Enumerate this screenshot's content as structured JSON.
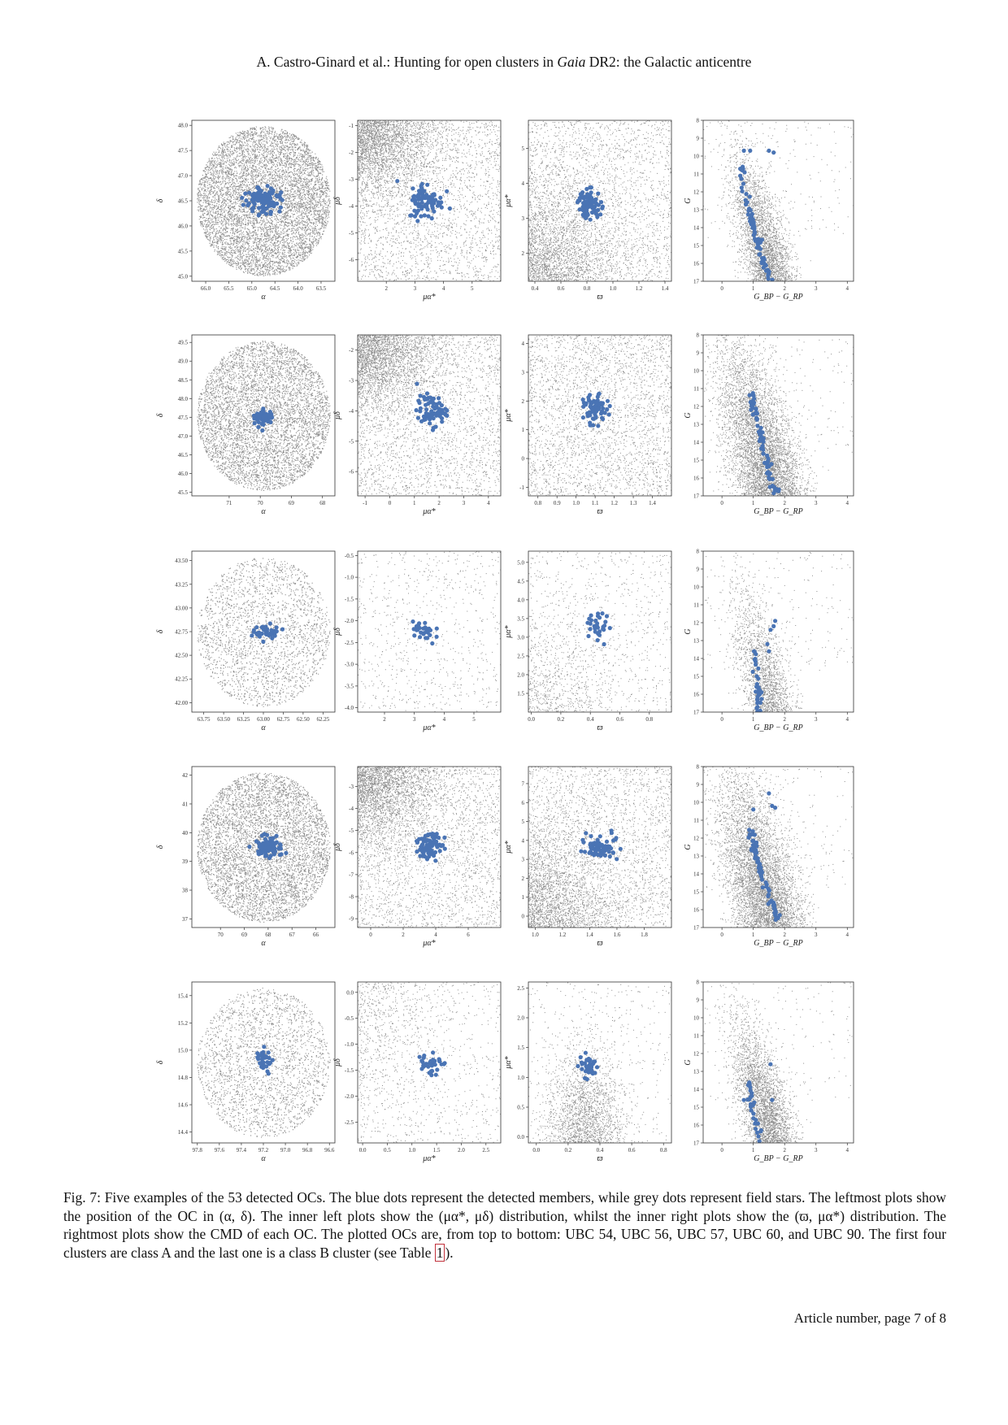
{
  "header": {
    "prefix": "A. Castro-Ginard et al.: Hunting for open clusters in ",
    "italic": "Gaia",
    "suffix": " DR2: the Galactic anticentre"
  },
  "colors": {
    "member": "#4a74b4",
    "field": "#7a7a7a",
    "frame": "#333333"
  },
  "chart_data": [
    {
      "type": "scatter",
      "cluster": "UBC 54",
      "panel": "position",
      "xlabel": "α",
      "ylabel": "δ",
      "xlim": [
        66.3,
        63.2
      ],
      "ylim": [
        44.9,
        48.1
      ],
      "xticks": [
        "66.0",
        "65.5",
        "65.0",
        "64.5",
        "64.0",
        "63.5"
      ],
      "xtick_values": [
        66.0,
        65.5,
        65.0,
        64.5,
        64.0,
        63.5
      ],
      "yticks": [
        "45.0",
        "45.5",
        "46.0",
        "46.5",
        "47.0",
        "47.5",
        "48.0"
      ],
      "ytick_values": [
        45.0,
        45.5,
        46.0,
        46.5,
        47.0,
        47.5,
        48.0
      ],
      "field_style": "dense-disk",
      "member_center": [
        64.75,
        46.5
      ],
      "member_spread": [
        0.18,
        0.12
      ],
      "member_count": 120
    },
    {
      "type": "scatter",
      "cluster": "UBC 54",
      "panel": "proper-motion",
      "xlabel": "μα*",
      "ylabel": "μδ",
      "xlim": [
        1,
        6
      ],
      "ylim": [
        -6.8,
        -0.8
      ],
      "xticks": [
        "2",
        "3",
        "4",
        "5"
      ],
      "xtick_values": [
        2,
        3,
        4,
        5
      ],
      "yticks": [
        "-1",
        "-2",
        "-3",
        "-4",
        "-5",
        "-6"
      ],
      "ytick_values": [
        -1,
        -2,
        -3,
        -4,
        -5,
        -6
      ],
      "field_style": "corner-top-left",
      "member_center": [
        3.4,
        -3.8
      ],
      "member_spread": [
        0.3,
        0.35
      ],
      "member_count": 80
    },
    {
      "type": "scatter",
      "cluster": "UBC 54",
      "panel": "parallax-pm",
      "xlabel": "ϖ",
      "ylabel": "μα*",
      "xlim": [
        0.35,
        1.45
      ],
      "ylim": [
        1.2,
        5.8
      ],
      "xticks": [
        "0.4",
        "0.6",
        "0.8",
        "1.0",
        "1.2",
        "1.4"
      ],
      "xtick_values": [
        0.4,
        0.6,
        0.8,
        1.0,
        1.2,
        1.4
      ],
      "yticks": [
        "2",
        "3",
        "4",
        "5"
      ],
      "ytick_values": [
        2,
        3,
        4,
        5
      ],
      "field_style": "corner-bottom-left",
      "member_center": [
        0.82,
        3.4
      ],
      "member_spread": [
        0.045,
        0.2
      ],
      "member_count": 80
    },
    {
      "type": "scatter",
      "cluster": "UBC 54",
      "panel": "CMD",
      "xlabel": "G_BP − G_RP",
      "ylabel": "G",
      "xlim": [
        -0.6,
        4.2
      ],
      "ylim": [
        17,
        8
      ],
      "xticks": [
        "0",
        "1",
        "2",
        "3",
        "4"
      ],
      "xtick_values": [
        0,
        1,
        2,
        3,
        4
      ],
      "yticks": [
        "8",
        "9",
        "10",
        "11",
        "12",
        "13",
        "14",
        "15",
        "16",
        "17"
      ],
      "ytick_values": [
        8,
        9,
        10,
        11,
        12,
        13,
        14,
        15,
        16,
        17
      ],
      "field_style": "cmd-band",
      "cmd_turnoff": [
        0.6,
        10.5
      ],
      "cmd_bottom": [
        1.55,
        17
      ],
      "member_count": 70,
      "members_extra": [
        [
          0.7,
          9.7
        ],
        [
          0.9,
          9.7
        ],
        [
          1.5,
          9.7
        ],
        [
          1.65,
          9.8
        ]
      ]
    },
    {
      "type": "scatter",
      "cluster": "UBC 56",
      "panel": "position",
      "xlabel": "α",
      "ylabel": "δ",
      "xlim": [
        72.2,
        67.6
      ],
      "ylim": [
        45.4,
        49.7
      ],
      "xticks": [
        "71",
        "70",
        "69",
        "68"
      ],
      "xtick_values": [
        71,
        70,
        69,
        68
      ],
      "yticks": [
        "45.5",
        "46.0",
        "46.5",
        "47.0",
        "47.5",
        "48.0",
        "48.5",
        "49.0",
        "49.5"
      ],
      "ytick_values": [
        45.5,
        46.0,
        46.5,
        47.0,
        47.5,
        48.0,
        48.5,
        49.0,
        49.5
      ],
      "field_style": "dense-disk",
      "member_center": [
        69.9,
        47.5
      ],
      "member_spread": [
        0.15,
        0.12
      ],
      "member_count": 60
    },
    {
      "type": "scatter",
      "cluster": "UBC 56",
      "panel": "proper-motion",
      "xlabel": "μα*",
      "ylabel": "μδ",
      "xlim": [
        -1.3,
        4.5
      ],
      "ylim": [
        -6.8,
        -1.5
      ],
      "xticks": [
        "-1",
        "0",
        "1",
        "2",
        "3",
        "4"
      ],
      "xtick_values": [
        -1,
        0,
        1,
        2,
        3,
        4
      ],
      "yticks": [
        "-2",
        "-3",
        "-4",
        "-5",
        "-6"
      ],
      "ytick_values": [
        -2,
        -3,
        -4,
        -5,
        -6
      ],
      "field_style": "corner-top-left",
      "member_center": [
        1.7,
        -4.0
      ],
      "member_spread": [
        0.3,
        0.25
      ],
      "member_count": 70
    },
    {
      "type": "scatter",
      "cluster": "UBC 56",
      "panel": "parallax-pm",
      "xlabel": "ϖ",
      "ylabel": "μα*",
      "xlim": [
        0.75,
        1.5
      ],
      "ylim": [
        -1.3,
        4.3
      ],
      "xticks": [
        "0.8",
        "0.9",
        "1.0",
        "1.1",
        "1.2",
        "1.3",
        "1.4"
      ],
      "xtick_values": [
        0.8,
        0.9,
        1.0,
        1.1,
        1.2,
        1.3,
        1.4
      ],
      "yticks": [
        "-1",
        "0",
        "1",
        "2",
        "3",
        "4"
      ],
      "ytick_values": [
        -1,
        0,
        1,
        2,
        3,
        4
      ],
      "field_style": "uniform",
      "member_center": [
        1.1,
        1.7
      ],
      "member_spread": [
        0.03,
        0.25
      ],
      "member_count": 70
    },
    {
      "type": "scatter",
      "cluster": "UBC 56",
      "panel": "CMD",
      "xlabel": "G_BP − G_RP",
      "ylabel": "G",
      "xlim": [
        -0.6,
        4.2
      ],
      "ylim": [
        17,
        8
      ],
      "xticks": [
        "0",
        "1",
        "2",
        "3",
        "4"
      ],
      "xtick_values": [
        0,
        1,
        2,
        3,
        4
      ],
      "yticks": [
        "8",
        "9",
        "10",
        "11",
        "12",
        "13",
        "14",
        "15",
        "16",
        "17"
      ],
      "ytick_values": [
        8,
        9,
        10,
        11,
        12,
        13,
        14,
        15,
        16,
        17
      ],
      "field_style": "cmd-band-heavy",
      "cmd_turnoff": [
        0.95,
        11.2
      ],
      "cmd_bottom": [
        1.75,
        16.9
      ],
      "member_count": 70,
      "members_extra": []
    },
    {
      "type": "scatter",
      "cluster": "UBC 57",
      "panel": "position",
      "xlabel": "α",
      "ylabel": "δ",
      "xlim": [
        63.9,
        62.1
      ],
      "ylim": [
        41.9,
        43.6
      ],
      "xticks": [
        "63.75",
        "63.50",
        "63.25",
        "63.00",
        "62.75",
        "62.50",
        "62.25"
      ],
      "xtick_values": [
        63.75,
        63.5,
        63.25,
        63.0,
        62.75,
        62.5,
        62.25
      ],
      "yticks": [
        "42.00",
        "42.25",
        "42.50",
        "42.75",
        "43.00",
        "43.25",
        "43.50"
      ],
      "ytick_values": [
        42.0,
        42.25,
        42.5,
        42.75,
        43.0,
        43.25,
        43.5
      ],
      "field_style": "sparse-disk",
      "member_center": [
        62.95,
        42.75
      ],
      "member_spread": [
        0.08,
        0.035
      ],
      "member_count": 40
    },
    {
      "type": "scatter",
      "cluster": "UBC 57",
      "panel": "proper-motion",
      "xlabel": "μα*",
      "ylabel": "μδ",
      "xlim": [
        1.1,
        5.9
      ],
      "ylim": [
        -4.1,
        -0.4
      ],
      "xticks": [
        "2",
        "3",
        "4",
        "5"
      ],
      "xtick_values": [
        2,
        3,
        4,
        5
      ],
      "yticks": [
        "-0.5",
        "-1.0",
        "-1.5",
        "-2.0",
        "-2.5",
        "-3.0",
        "-3.5",
        "-4.0"
      ],
      "ytick_values": [
        -0.5,
        -1.0,
        -1.5,
        -2.0,
        -2.5,
        -3.0,
        -3.5,
        -4.0
      ],
      "field_style": "sparse",
      "member_center": [
        3.3,
        -2.25
      ],
      "member_spread": [
        0.2,
        0.18
      ],
      "member_count": 30
    },
    {
      "type": "scatter",
      "cluster": "UBC 57",
      "panel": "parallax-pm",
      "xlabel": "ϖ",
      "ylabel": "μα*",
      "xlim": [
        -0.02,
        0.95
      ],
      "ylim": [
        1.0,
        5.3
      ],
      "xticks": [
        "0.0",
        "0.2",
        "0.4",
        "0.6",
        "0.8"
      ],
      "xtick_values": [
        0.0,
        0.2,
        0.4,
        0.6,
        0.8
      ],
      "yticks": [
        "1.5",
        "2.0",
        "2.5",
        "3.0",
        "3.5",
        "4.0",
        "4.5",
        "5.0"
      ],
      "ytick_values": [
        1.5,
        2.0,
        2.5,
        3.0,
        3.5,
        4.0,
        4.5,
        5.0
      ],
      "field_style": "corner-bottom-left-sparse",
      "member_center": [
        0.45,
        3.25
      ],
      "member_spread": [
        0.04,
        0.2
      ],
      "member_count": 30
    },
    {
      "type": "scatter",
      "cluster": "UBC 57",
      "panel": "CMD",
      "xlabel": "G_BP − G_RP",
      "ylabel": "G",
      "xlim": [
        -0.6,
        4.2
      ],
      "ylim": [
        17,
        8
      ],
      "xticks": [
        "0",
        "1",
        "2",
        "3",
        "4"
      ],
      "xtick_values": [
        0,
        1,
        2,
        3,
        4
      ],
      "yticks": [
        "8",
        "9",
        "10",
        "11",
        "12",
        "13",
        "14",
        "15",
        "16",
        "17"
      ],
      "ytick_values": [
        8,
        9,
        10,
        11,
        12,
        13,
        14,
        15,
        16,
        17
      ],
      "field_style": "cmd-double",
      "cmd_turnoff": [
        1.05,
        13.6
      ],
      "cmd_bottom": [
        1.2,
        17
      ],
      "member_count": 35,
      "members_extra": [
        [
          1.55,
          12.4
        ],
        [
          1.65,
          12.2
        ],
        [
          1.7,
          11.9
        ],
        [
          1.45,
          13.2
        ],
        [
          1.5,
          13.6
        ]
      ]
    },
    {
      "type": "scatter",
      "cluster": "UBC 60",
      "panel": "position",
      "xlabel": "α",
      "ylabel": "δ",
      "xlim": [
        71.2,
        65.2
      ],
      "ylim": [
        36.7,
        42.3
      ],
      "xticks": [
        "70",
        "69",
        "68",
        "67",
        "66"
      ],
      "xtick_values": [
        70,
        69,
        68,
        67,
        66
      ],
      "yticks": [
        "37",
        "38",
        "39",
        "40",
        "41",
        "42"
      ],
      "ytick_values": [
        37,
        38,
        39,
        40,
        41,
        42
      ],
      "field_style": "dense-disk",
      "member_center": [
        68.0,
        39.5
      ],
      "member_spread": [
        0.25,
        0.18
      ],
      "member_count": 90
    },
    {
      "type": "scatter",
      "cluster": "UBC 60",
      "panel": "proper-motion",
      "xlabel": "μα*",
      "ylabel": "μδ",
      "xlim": [
        -0.8,
        8.0
      ],
      "ylim": [
        -9.4,
        -2.1
      ],
      "xticks": [
        "0",
        "2",
        "4",
        "6"
      ],
      "xtick_values": [
        0,
        2,
        4,
        6
      ],
      "yticks": [
        "-3",
        "-4",
        "-5",
        "-6",
        "-7",
        "-8",
        "-9"
      ],
      "ytick_values": [
        -3,
        -4,
        -5,
        -6,
        -7,
        -8,
        -9
      ],
      "field_style": "corner-top-left",
      "member_center": [
        3.5,
        -5.7
      ],
      "member_spread": [
        0.45,
        0.3
      ],
      "member_count": 80
    },
    {
      "type": "scatter",
      "cluster": "UBC 60",
      "panel": "parallax-pm",
      "xlabel": "ϖ",
      "ylabel": "μα*",
      "xlim": [
        0.95,
        2.0
      ],
      "ylim": [
        -0.6,
        7.9
      ],
      "xticks": [
        "1.0",
        "1.2",
        "1.4",
        "1.6",
        "1.8"
      ],
      "xtick_values": [
        1.0,
        1.2,
        1.4,
        1.6,
        1.8
      ],
      "yticks": [
        "0",
        "1",
        "2",
        "3",
        "4",
        "5",
        "6",
        "7"
      ],
      "ytick_values": [
        0,
        1,
        2,
        3,
        4,
        5,
        6,
        7
      ],
      "field_style": "corner-bottom-left",
      "member_center": [
        1.48,
        3.7
      ],
      "member_spread": [
        0.06,
        0.3
      ],
      "member_count": 80
    },
    {
      "type": "scatter",
      "cluster": "UBC 60",
      "panel": "CMD",
      "xlabel": "G_BP − G_RP",
      "ylabel": "G",
      "xlim": [
        -0.6,
        4.2
      ],
      "ylim": [
        17,
        8
      ],
      "xticks": [
        "0",
        "1",
        "2",
        "3",
        "4"
      ],
      "xtick_values": [
        0,
        1,
        2,
        3,
        4
      ],
      "yticks": [
        "8",
        "9",
        "10",
        "11",
        "12",
        "13",
        "14",
        "15",
        "16",
        "17"
      ],
      "ytick_values": [
        8,
        9,
        10,
        11,
        12,
        13,
        14,
        15,
        16,
        17
      ],
      "field_style": "cmd-band-heavy",
      "cmd_turnoff": [
        0.9,
        11.4
      ],
      "cmd_bottom": [
        1.8,
        16.6
      ],
      "member_count": 75,
      "members_extra": [
        [
          1.0,
          10.4
        ],
        [
          1.5,
          9.5
        ],
        [
          1.6,
          10.2
        ],
        [
          1.7,
          10.3
        ]
      ]
    },
    {
      "type": "scatter",
      "cluster": "UBC 90",
      "panel": "position",
      "xlabel": "α",
      "ylabel": "δ",
      "xlim": [
        97.85,
        96.55
      ],
      "ylim": [
        14.32,
        15.5
      ],
      "xticks": [
        "97.8",
        "97.6",
        "97.4",
        "97.2",
        "97.0",
        "96.8",
        "96.6"
      ],
      "xtick_values": [
        97.8,
        97.6,
        97.4,
        97.2,
        97.0,
        96.8,
        96.6
      ],
      "yticks": [
        "14.4",
        "14.6",
        "14.8",
        "15.0",
        "15.2",
        "15.4"
      ],
      "ytick_values": [
        14.4,
        14.6,
        14.8,
        15.0,
        15.2,
        15.4
      ],
      "field_style": "sparse-disk",
      "member_center": [
        97.2,
        14.92
      ],
      "member_spread": [
        0.035,
        0.05
      ],
      "member_count": 35
    },
    {
      "type": "scatter",
      "cluster": "UBC 90",
      "panel": "proper-motion",
      "xlabel": "μα*",
      "ylabel": "μδ",
      "xlim": [
        -0.1,
        2.8
      ],
      "ylim": [
        -2.9,
        0.2
      ],
      "xticks": [
        "0.0",
        "0.5",
        "1.0",
        "1.5",
        "2.0",
        "2.5"
      ],
      "xtick_values": [
        0,
        0.5,
        1.0,
        1.5,
        2.0,
        2.5
      ],
      "yticks": [
        "0.0",
        "-0.5",
        "-1.0",
        "-1.5",
        "-2.0",
        "-2.5"
      ],
      "ytick_values": [
        0,
        -0.5,
        -1.0,
        -1.5,
        -2.0,
        -2.5
      ],
      "field_style": "sparse-left",
      "member_center": [
        1.35,
        -1.35
      ],
      "member_spread": [
        0.12,
        0.12
      ],
      "member_count": 35
    },
    {
      "type": "scatter",
      "cluster": "UBC 90",
      "panel": "parallax-pm",
      "xlabel": "ϖ",
      "ylabel": "μα*",
      "xlim": [
        -0.05,
        0.85
      ],
      "ylim": [
        -0.1,
        2.6
      ],
      "xticks": [
        "0.0",
        "0.2",
        "0.4",
        "0.6",
        "0.8"
      ],
      "xtick_values": [
        0.0,
        0.2,
        0.4,
        0.6,
        0.8
      ],
      "yticks": [
        "0.0",
        "0.5",
        "1.0",
        "1.5",
        "2.0",
        "2.5"
      ],
      "ytick_values": [
        0,
        0.5,
        1.0,
        1.5,
        2.0,
        2.5
      ],
      "field_style": "bottom-blob",
      "member_center": [
        0.33,
        1.2
      ],
      "member_spread": [
        0.03,
        0.1
      ],
      "member_count": 35
    },
    {
      "type": "scatter",
      "cluster": "UBC 90",
      "panel": "CMD",
      "xlabel": "G_BP − G_RP",
      "ylabel": "G",
      "xlim": [
        -0.6,
        4.2
      ],
      "ylim": [
        17,
        8
      ],
      "xticks": [
        "0",
        "1",
        "2",
        "3",
        "4"
      ],
      "xtick_values": [
        0,
        1,
        2,
        3,
        4
      ],
      "yticks": [
        "8",
        "9",
        "10",
        "11",
        "12",
        "13",
        "14",
        "15",
        "16",
        "17"
      ],
      "ytick_values": [
        8,
        9,
        10,
        11,
        12,
        13,
        14,
        15,
        16,
        17
      ],
      "field_style": "cmd-band",
      "cmd_turnoff": [
        0.85,
        13.4
      ],
      "cmd_bottom": [
        1.2,
        17
      ],
      "member_count": 30,
      "members_extra": [
        [
          1.55,
          12.6
        ],
        [
          1.6,
          14.6
        ],
        [
          0.7,
          14.6
        ]
      ]
    }
  ],
  "caption": {
    "text": "Fig. 7: Five examples of the 53 detected OCs. The blue dots represent the detected members, while grey dots represent field stars. The leftmost plots show the position of the OC in (α, δ). The inner left plots show the (μα*, μδ) distribution, whilst the inner right plots show the (ϖ, μα*) distribution. The rightmost plots show the CMD of each OC. The plotted OCs are, from top to bottom: UBC 54, UBC 56, UBC 57, UBC 60, and UBC 90. The first four clusters are class A and the last one is a class B cluster (see Table ",
    "ref": "1",
    "end": ")."
  },
  "footer": {
    "text": "Article number, page 7 of 8"
  }
}
